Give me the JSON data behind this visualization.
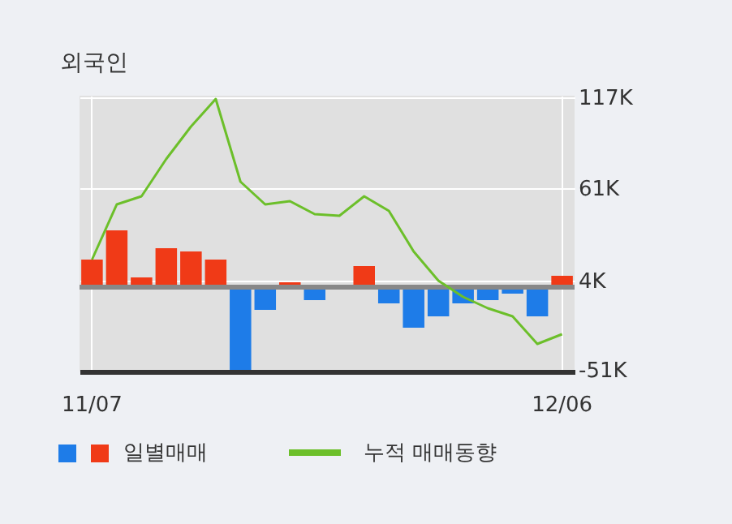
{
  "chart_data": {
    "type": "bar",
    "title": "외국인",
    "categories": [
      "11/07",
      null,
      null,
      null,
      null,
      null,
      null,
      null,
      null,
      null,
      null,
      null,
      null,
      null,
      null,
      null,
      null,
      null,
      null,
      "12/06"
    ],
    "series": [
      {
        "name": "일별매매",
        "type": "bar",
        "colors": [
          "#f03a17",
          "#f03a17",
          "#f03a17",
          "#f03a17",
          "#f03a17",
          "#f03a17",
          "#1e7ce8",
          "#1e7ce8",
          "#f03a17",
          "#1e7ce8",
          "#f03a17",
          "#f03a17",
          "#1e7ce8",
          "#1e7ce8",
          "#1e7ce8",
          "#1e7ce8",
          "#1e7ce8",
          "#1e7ce8",
          "#1e7ce8",
          "#f03a17"
        ],
        "values": [
          17,
          35,
          6,
          24,
          22,
          17,
          -51,
          -14,
          3,
          -8,
          0,
          13,
          -10,
          -25,
          -18,
          -10,
          -8,
          -4,
          -18,
          7
        ]
      },
      {
        "name": "누적 매매동향",
        "type": "line",
        "color": "#6cbf2a",
        "values": [
          17,
          51,
          56,
          79,
          99,
          116,
          65,
          51,
          53,
          45,
          44,
          56,
          47,
          22,
          4,
          -6,
          -13,
          -18,
          -35,
          -29
        ]
      }
    ],
    "ylim": [
      -52,
      118
    ],
    "yticks": [
      {
        "value": 117,
        "label": "117K"
      },
      {
        "value": 61,
        "label": "61K"
      },
      {
        "value": 4,
        "label": "4K"
      },
      {
        "value": -51,
        "label": "-51K"
      }
    ],
    "ref_lines": [
      {
        "axis": "y",
        "value": 0,
        "color": "#888888"
      }
    ],
    "grid": true,
    "legend": "bottom",
    "marker": "none"
  }
}
